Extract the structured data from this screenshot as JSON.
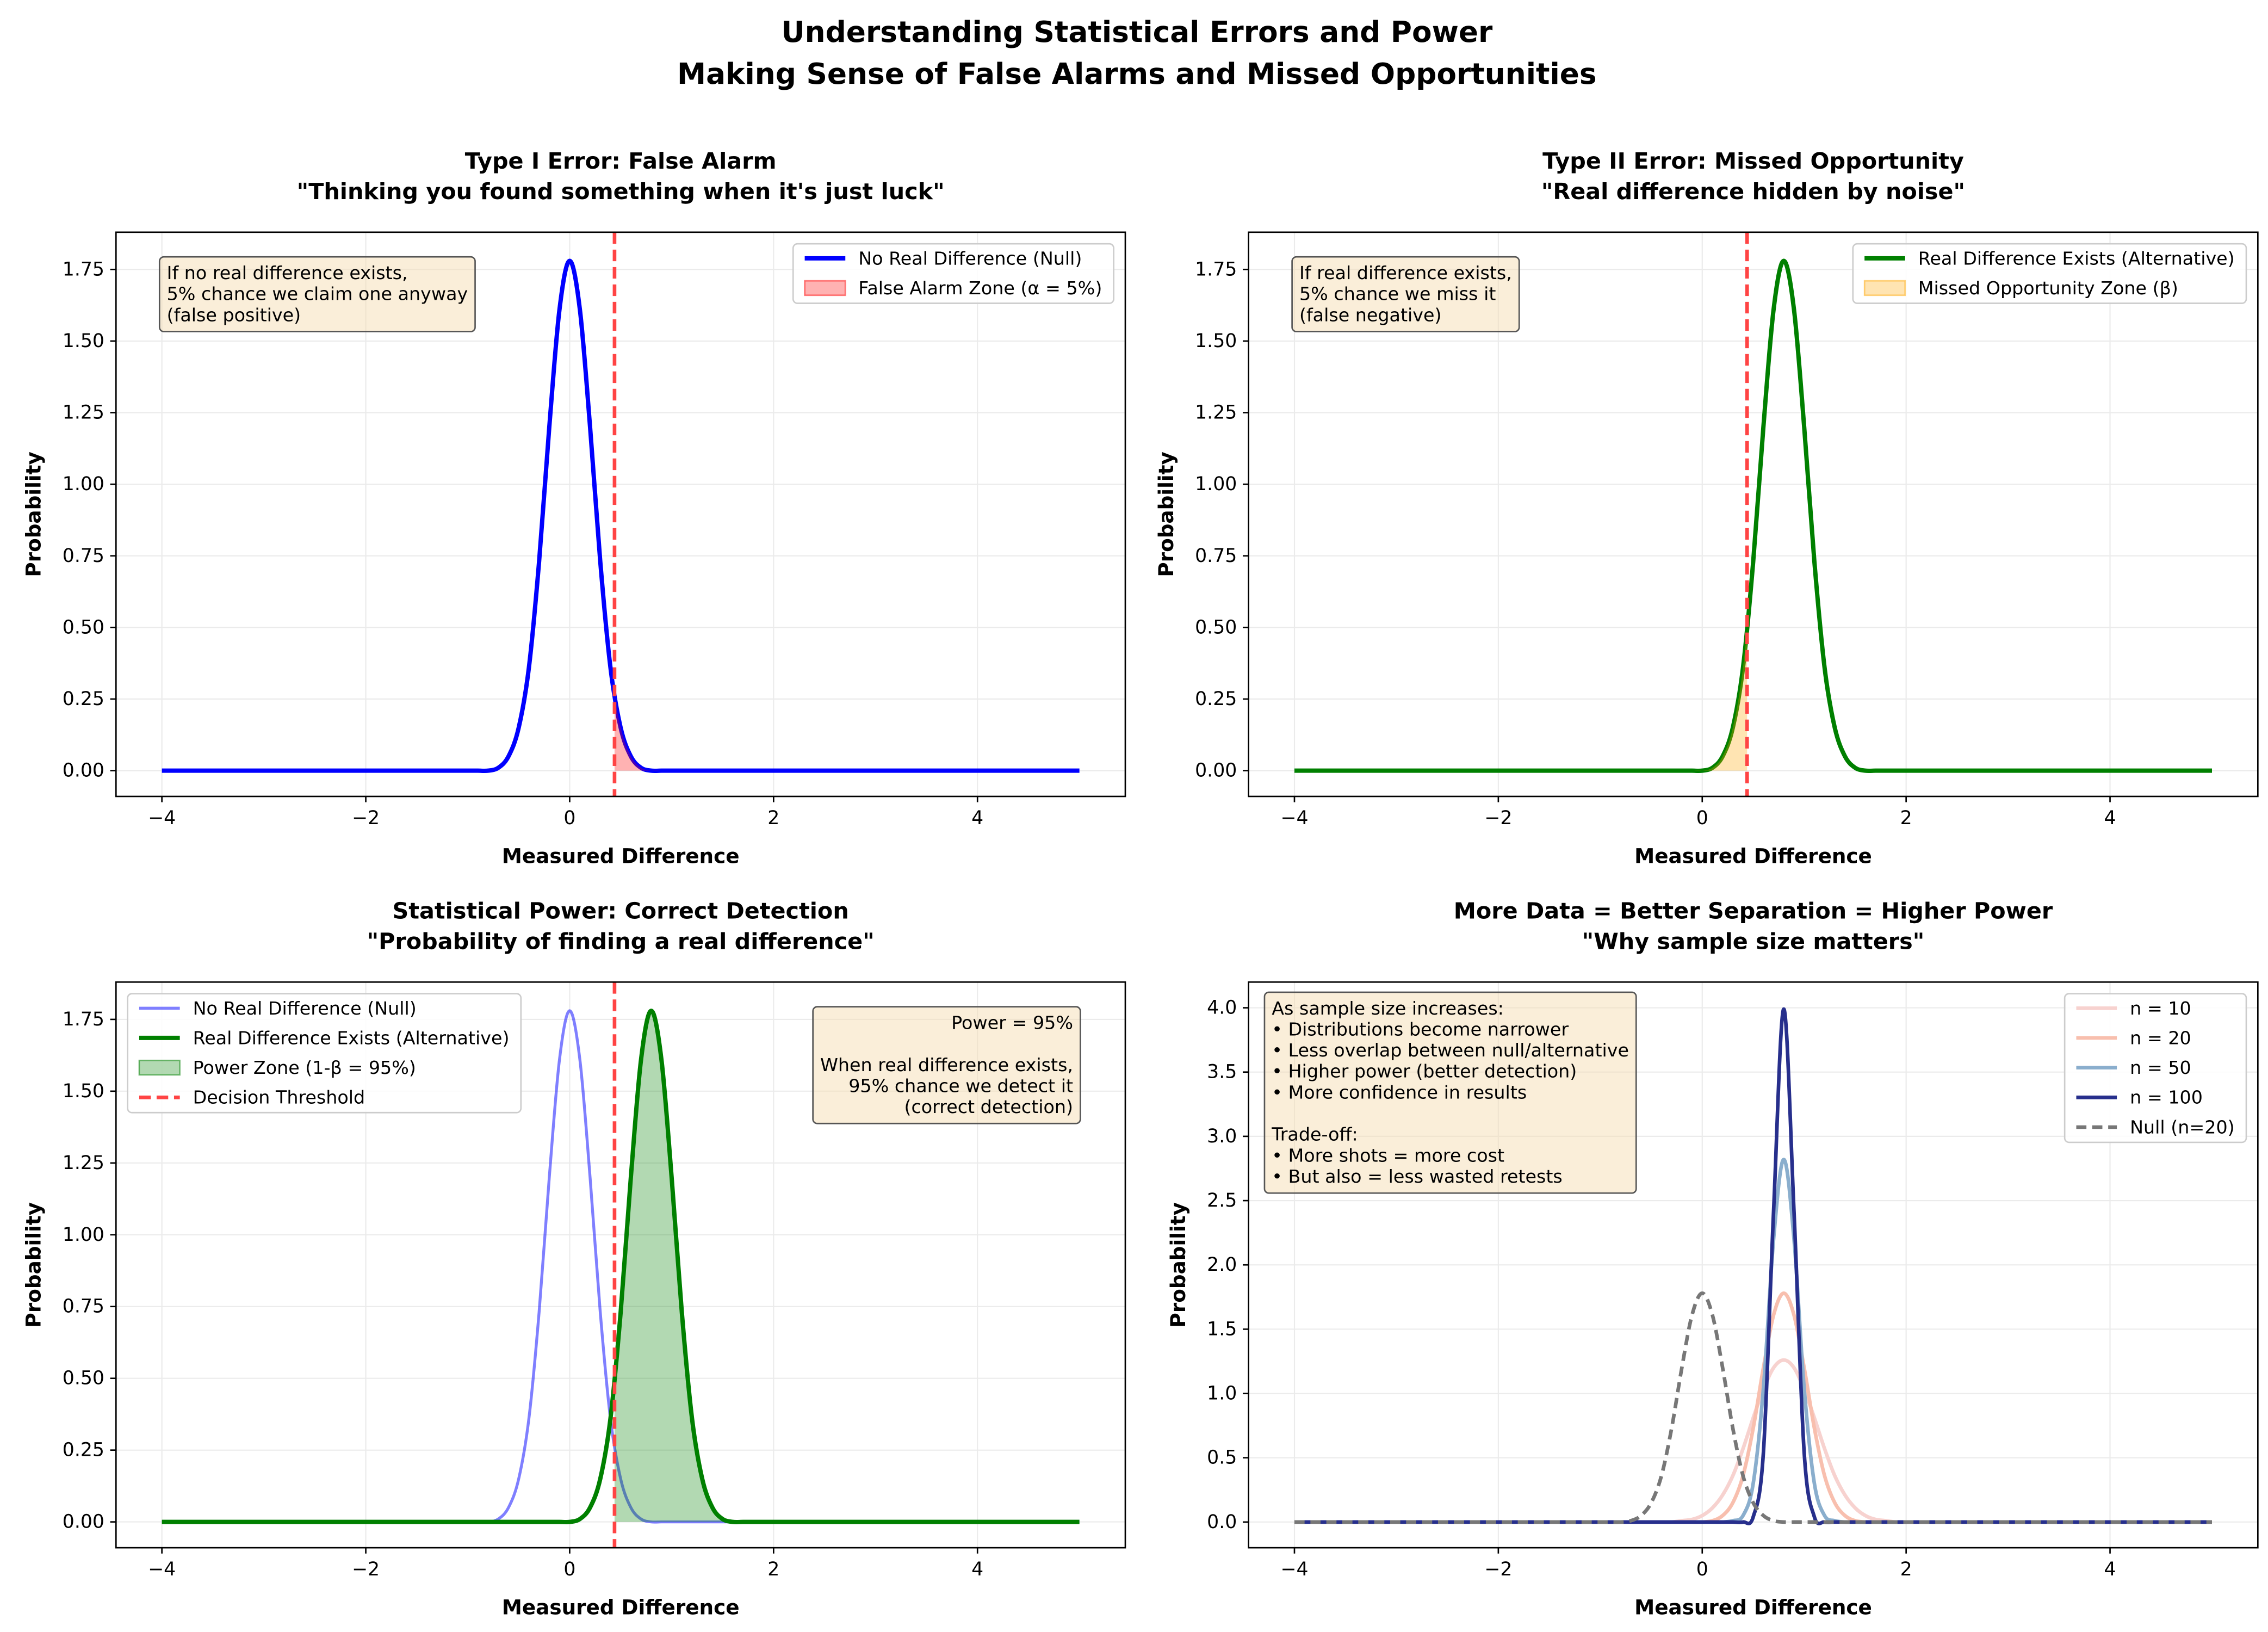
{
  "title": [
    "Understanding Statistical Errors and Power",
    "Making Sense of False Alarms and Missed Opportunities"
  ],
  "chart_data": [
    {
      "type": "line",
      "title": [
        "Type I Error: False Alarm",
        "\"Thinking you found something when it's just luck\""
      ],
      "xlabel": "Measured Difference",
      "ylabel": "Probability",
      "x": [
        -4,
        -1,
        -0.9,
        -0.8,
        -0.7,
        -0.6,
        -0.5,
        -0.4,
        -0.3,
        -0.2,
        -0.1,
        0,
        0.1,
        0.2,
        0.3,
        0.4,
        0.5,
        0.6,
        0.7,
        0.8,
        0.9,
        1,
        1.1,
        1.2,
        1.3,
        1.4,
        1.5,
        1.6,
        1.7,
        1.8,
        1.9,
        2,
        5
      ],
      "series": [
        {
          "name": "No Real Difference (Null)",
          "color": "#0000ff",
          "width": 3,
          "values": [
            0,
            0,
            0,
            0,
            0.01,
            0.05,
            0.15,
            0.36,
            0.73,
            1.2,
            1.61,
            1.78,
            1.61,
            1.2,
            0.73,
            0.36,
            0.15,
            0.05,
            0.01,
            0,
            0,
            0,
            0,
            0,
            0,
            0,
            0,
            0,
            0,
            0,
            0,
            0,
            0
          ]
        },
        {
          "name": "False Alarm Zone (α = 5%)",
          "color": "#ff0000",
          "opacity": 0.3,
          "fill": "right",
          "values": [
            0,
            0,
            0,
            0,
            0.01,
            0.05,
            0.15,
            0.36,
            0.73,
            1.2,
            1.61,
            1.78,
            1.61,
            1.2,
            0.73,
            0.36,
            0.15,
            0.05,
            0.01,
            0,
            0,
            0,
            0,
            0,
            0,
            0,
            0,
            0,
            0,
            0,
            0,
            0,
            0
          ]
        }
      ],
      "threshold": 0.44,
      "threshold_color": "#ff4444",
      "xlim": [
        -4.45,
        5.45
      ],
      "ylim": [
        -0.09,
        1.88
      ],
      "xticks": [
        {
          "value": -4,
          "label": "−4"
        },
        {
          "value": -2,
          "label": "−2"
        },
        0,
        2,
        4
      ],
      "yticks": [
        {
          "value": 0,
          "label": "0.00"
        },
        0.25,
        {
          "value": 0.5,
          "label": "0.50"
        },
        0.75,
        {
          "value": 1,
          "label": "1.00"
        },
        1.25,
        {
          "value": 1.5,
          "label": "1.50"
        },
        1.75
      ],
      "grid": true,
      "legend": "upper right",
      "annotation": [
        [
          "If no real difference exists,",
          "5% chance we claim one anyway",
          "(false positive)"
        ]
      ],
      "annotation_loc": "upper left"
    },
    {
      "type": "line",
      "title": [
        "Type II Error: Missed Opportunity",
        "\"Real difference hidden by noise\""
      ],
      "xlabel": "Measured Difference",
      "ylabel": "Probability",
      "x": [
        -4,
        -1,
        -0.9,
        -0.8,
        -0.7,
        -0.6,
        -0.5,
        -0.4,
        -0.3,
        -0.2,
        -0.1,
        0,
        0.1,
        0.2,
        0.3,
        0.4,
        0.5,
        0.6,
        0.7,
        0.8,
        0.9,
        1,
        1.1,
        1.2,
        1.3,
        1.4,
        1.5,
        1.6,
        1.7,
        1.8,
        1.9,
        2,
        5
      ],
      "series": [
        {
          "name": "Real Difference Exists (Alternative)",
          "color": "#008000",
          "width": 3,
          "values": [
            0,
            0,
            0,
            0,
            0,
            0,
            0,
            0,
            0,
            0,
            0,
            0,
            0.01,
            0.05,
            0.15,
            0.36,
            0.73,
            1.2,
            1.61,
            1.78,
            1.61,
            1.2,
            0.73,
            0.36,
            0.15,
            0.05,
            0.01,
            0,
            0,
            0,
            0,
            0,
            0
          ]
        },
        {
          "name": "Missed Opportunity Zone (β)",
          "color": "#ffa500",
          "opacity": 0.3,
          "fill": "left",
          "values": [
            0,
            0,
            0,
            0,
            0,
            0,
            0,
            0,
            0,
            0,
            0,
            0,
            0.01,
            0.05,
            0.15,
            0.36,
            0.73,
            1.2,
            1.61,
            1.78,
            1.61,
            1.2,
            0.73,
            0.36,
            0.15,
            0.05,
            0.01,
            0,
            0,
            0,
            0,
            0,
            0
          ]
        }
      ],
      "threshold": 0.44,
      "threshold_color": "#ff4444",
      "xlim": [
        -4.45,
        5.45
      ],
      "ylim": [
        -0.09,
        1.88
      ],
      "xticks": [
        {
          "value": -4,
          "label": "−4"
        },
        {
          "value": -2,
          "label": "−2"
        },
        0,
        2,
        4
      ],
      "yticks": [
        {
          "value": 0,
          "label": "0.00"
        },
        0.25,
        {
          "value": 0.5,
          "label": "0.50"
        },
        0.75,
        {
          "value": 1,
          "label": "1.00"
        },
        1.25,
        {
          "value": 1.5,
          "label": "1.50"
        },
        1.75
      ],
      "grid": true,
      "legend": "upper right",
      "annotation": [
        [
          "If real difference exists,",
          "5% chance we miss it",
          "(false negative)"
        ]
      ],
      "annotation_loc": "upper left"
    },
    {
      "type": "line",
      "title": [
        "Statistical Power: Correct Detection",
        "\"Probability of finding a real difference\""
      ],
      "xlabel": "Measured Difference",
      "ylabel": "Probability",
      "x": [
        -4,
        -1,
        -0.9,
        -0.8,
        -0.7,
        -0.6,
        -0.5,
        -0.4,
        -0.3,
        -0.2,
        -0.1,
        0,
        0.1,
        0.2,
        0.3,
        0.4,
        0.5,
        0.6,
        0.7,
        0.8,
        0.9,
        1,
        1.1,
        1.2,
        1.3,
        1.4,
        1.5,
        1.6,
        1.7,
        1.8,
        1.9,
        2,
        5
      ],
      "series": [
        {
          "name": "No Real Difference (Null)",
          "color": "#0000ff",
          "opacity": 0.5,
          "width": 2,
          "values": [
            0,
            0,
            0,
            0,
            0.01,
            0.05,
            0.15,
            0.36,
            0.73,
            1.2,
            1.61,
            1.78,
            1.61,
            1.2,
            0.73,
            0.36,
            0.15,
            0.05,
            0.01,
            0,
            0,
            0,
            0,
            0,
            0,
            0,
            0,
            0,
            0,
            0,
            0,
            0,
            0
          ]
        },
        {
          "name": "Real Difference Exists (Alternative)",
          "color": "#008000",
          "width": 3,
          "values": [
            0,
            0,
            0,
            0,
            0,
            0,
            0,
            0,
            0,
            0,
            0,
            0,
            0.01,
            0.05,
            0.15,
            0.36,
            0.73,
            1.2,
            1.61,
            1.78,
            1.61,
            1.2,
            0.73,
            0.36,
            0.15,
            0.05,
            0.01,
            0,
            0,
            0,
            0,
            0,
            0
          ]
        },
        {
          "name": "Power Zone (1-β = 95%)",
          "color": "#008000",
          "opacity": 0.3,
          "fill": "right",
          "values": [
            0,
            0,
            0,
            0,
            0,
            0,
            0,
            0,
            0,
            0,
            0,
            0,
            0.01,
            0.05,
            0.15,
            0.36,
            0.73,
            1.2,
            1.61,
            1.78,
            1.61,
            1.2,
            0.73,
            0.36,
            0.15,
            0.05,
            0.01,
            0,
            0,
            0,
            0,
            0,
            0
          ]
        }
      ],
      "threshold": 0.44,
      "threshold_color": "#ff4444",
      "threshold_label": "Decision Threshold",
      "xlim": [
        -4.45,
        5.45
      ],
      "ylim": [
        -0.09,
        1.88
      ],
      "xticks": [
        {
          "value": -4,
          "label": "−4"
        },
        {
          "value": -2,
          "label": "−2"
        },
        0,
        2,
        4
      ],
      "yticks": [
        {
          "value": 0,
          "label": "0.00"
        },
        0.25,
        {
          "value": 0.5,
          "label": "0.50"
        },
        0.75,
        {
          "value": 1,
          "label": "1.00"
        },
        1.25,
        {
          "value": 1.5,
          "label": "1.50"
        },
        1.75
      ],
      "grid": true,
      "legend": "upper left",
      "annotation": [
        [
          "Power = 95%"
        ],
        [
          "When real difference exists,",
          "95% chance we detect it",
          "(correct detection)"
        ]
      ],
      "annotation_loc": "upper right"
    },
    {
      "type": "line",
      "title": [
        "More Data = Better Separation = Higher Power",
        "\"Why sample size matters\""
      ],
      "xlabel": "Measured Difference",
      "ylabel": "Probability",
      "x": [
        -4,
        -1,
        -0.9,
        -0.8,
        -0.7,
        -0.6,
        -0.5,
        -0.4,
        -0.3,
        -0.2,
        -0.1,
        0,
        0.1,
        0.2,
        0.3,
        0.4,
        0.5,
        0.6,
        0.7,
        0.8,
        0.9,
        1,
        1.1,
        1.2,
        1.3,
        1.4,
        1.5,
        1.6,
        1.7,
        1.8,
        1.9,
        2,
        5
      ],
      "series": [
        {
          "name": "n = 10",
          "color": "#f7d2cf",
          "width": 2.5,
          "values": [
            0,
            0,
            0,
            0,
            0,
            0,
            0,
            0,
            0,
            0.01,
            0.02,
            0.05,
            0.11,
            0.21,
            0.36,
            0.57,
            0.81,
            1.03,
            1.2,
            1.26,
            1.2,
            1.03,
            0.81,
            0.57,
            0.36,
            0.21,
            0.11,
            0.05,
            0.02,
            0.01,
            0,
            0,
            0
          ]
        },
        {
          "name": "n = 20",
          "color": "#f8bfae",
          "width": 2.5,
          "values": [
            0,
            0,
            0,
            0,
            0,
            0,
            0,
            0,
            0,
            0,
            0,
            0,
            0.01,
            0.05,
            0.15,
            0.36,
            0.73,
            1.2,
            1.61,
            1.78,
            1.61,
            1.2,
            0.73,
            0.36,
            0.15,
            0.05,
            0.01,
            0,
            0,
            0,
            0,
            0,
            0
          ]
        },
        {
          "name": "n = 50",
          "color": "#8aaecd",
          "width": 2.5,
          "values": [
            0,
            0,
            0,
            0,
            0,
            0,
            0,
            0,
            0,
            0,
            0,
            0,
            0,
            0,
            0.01,
            0.05,
            0.3,
            1.04,
            2.2,
            2.82,
            2.2,
            1.04,
            0.3,
            0.05,
            0.01,
            0,
            0,
            0,
            0,
            0,
            0,
            0,
            0
          ]
        },
        {
          "name": "n = 100",
          "color": "#272f8c",
          "width": 2.5,
          "values": [
            0,
            0,
            0,
            0,
            0,
            0,
            0,
            0,
            0,
            0,
            0,
            0,
            0,
            0,
            0,
            0,
            0.04,
            0.54,
            2.42,
            3.99,
            2.42,
            0.54,
            0.04,
            0,
            0,
            0,
            0,
            0,
            0,
            0,
            0,
            0,
            0
          ]
        },
        {
          "name": "Null (n=20)",
          "color": "#777777",
          "width": 2.5,
          "dashed": true,
          "values": [
            0,
            0,
            0,
            0,
            0.01,
            0.05,
            0.15,
            0.36,
            0.73,
            1.2,
            1.61,
            1.78,
            1.61,
            1.2,
            0.73,
            0.36,
            0.15,
            0.05,
            0.01,
            0,
            0,
            0,
            0,
            0,
            0,
            0,
            0,
            0,
            0,
            0,
            0,
            0,
            0
          ]
        }
      ],
      "xlim": [
        -4.45,
        5.45
      ],
      "ylim": [
        -0.2,
        4.2
      ],
      "xticks": [
        {
          "value": -4,
          "label": "−4"
        },
        {
          "value": -2,
          "label": "−2"
        },
        0,
        2,
        4
      ],
      "yticks": [
        {
          "value": 0,
          "label": "0.0"
        },
        0.5,
        {
          "value": 1,
          "label": "1.0"
        },
        1.5,
        {
          "value": 2,
          "label": "2.0"
        },
        2.5,
        {
          "value": 3,
          "label": "3.0"
        },
        3.5,
        {
          "value": 4,
          "label": "4.0"
        }
      ],
      "grid": true,
      "legend": "upper right",
      "annotation": [
        [
          "As sample size increases:",
          "• Distributions become narrower",
          "• Less overlap between null/alternative",
          "• Higher power (better detection)",
          "• More confidence in results"
        ],
        [
          "Trade-off:",
          "• More shots = more cost",
          "• But also = less wasted retests"
        ]
      ],
      "annotation_loc": "upper left"
    }
  ]
}
